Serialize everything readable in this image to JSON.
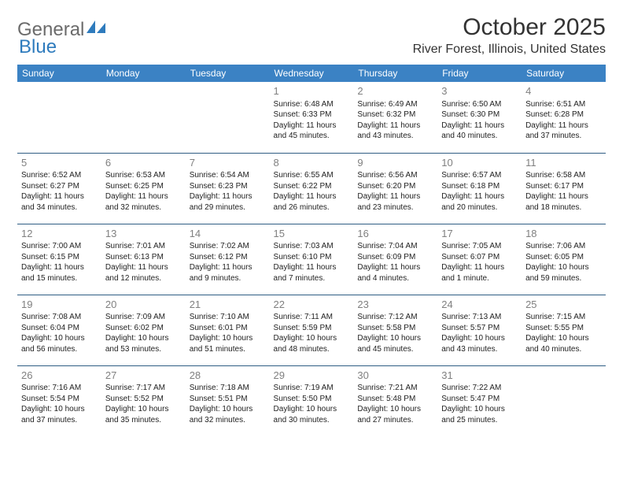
{
  "colors": {
    "header_bg": "#3b82c4",
    "header_text": "#ffffff",
    "row_divider": "#2f5d84",
    "daynum": "#808080",
    "body_text": "#222222",
    "logo_gray": "#6b6b6b",
    "logo_blue": "#2e7bbd",
    "page_bg": "#ffffff"
  },
  "logo": {
    "part1": "General",
    "part2": "Blue"
  },
  "title": "October 2025",
  "location": "River Forest, Illinois, United States",
  "weekdays": [
    "Sunday",
    "Monday",
    "Tuesday",
    "Wednesday",
    "Thursday",
    "Friday",
    "Saturday"
  ],
  "weeks": [
    [
      null,
      null,
      null,
      {
        "n": "1",
        "sr": "Sunrise: 6:48 AM",
        "ss": "Sunset: 6:33 PM",
        "d1": "Daylight: 11 hours",
        "d2": "and 45 minutes."
      },
      {
        "n": "2",
        "sr": "Sunrise: 6:49 AM",
        "ss": "Sunset: 6:32 PM",
        "d1": "Daylight: 11 hours",
        "d2": "and 43 minutes."
      },
      {
        "n": "3",
        "sr": "Sunrise: 6:50 AM",
        "ss": "Sunset: 6:30 PM",
        "d1": "Daylight: 11 hours",
        "d2": "and 40 minutes."
      },
      {
        "n": "4",
        "sr": "Sunrise: 6:51 AM",
        "ss": "Sunset: 6:28 PM",
        "d1": "Daylight: 11 hours",
        "d2": "and 37 minutes."
      }
    ],
    [
      {
        "n": "5",
        "sr": "Sunrise: 6:52 AM",
        "ss": "Sunset: 6:27 PM",
        "d1": "Daylight: 11 hours",
        "d2": "and 34 minutes."
      },
      {
        "n": "6",
        "sr": "Sunrise: 6:53 AM",
        "ss": "Sunset: 6:25 PM",
        "d1": "Daylight: 11 hours",
        "d2": "and 32 minutes."
      },
      {
        "n": "7",
        "sr": "Sunrise: 6:54 AM",
        "ss": "Sunset: 6:23 PM",
        "d1": "Daylight: 11 hours",
        "d2": "and 29 minutes."
      },
      {
        "n": "8",
        "sr": "Sunrise: 6:55 AM",
        "ss": "Sunset: 6:22 PM",
        "d1": "Daylight: 11 hours",
        "d2": "and 26 minutes."
      },
      {
        "n": "9",
        "sr": "Sunrise: 6:56 AM",
        "ss": "Sunset: 6:20 PM",
        "d1": "Daylight: 11 hours",
        "d2": "and 23 minutes."
      },
      {
        "n": "10",
        "sr": "Sunrise: 6:57 AM",
        "ss": "Sunset: 6:18 PM",
        "d1": "Daylight: 11 hours",
        "d2": "and 20 minutes."
      },
      {
        "n": "11",
        "sr": "Sunrise: 6:58 AM",
        "ss": "Sunset: 6:17 PM",
        "d1": "Daylight: 11 hours",
        "d2": "and 18 minutes."
      }
    ],
    [
      {
        "n": "12",
        "sr": "Sunrise: 7:00 AM",
        "ss": "Sunset: 6:15 PM",
        "d1": "Daylight: 11 hours",
        "d2": "and 15 minutes."
      },
      {
        "n": "13",
        "sr": "Sunrise: 7:01 AM",
        "ss": "Sunset: 6:13 PM",
        "d1": "Daylight: 11 hours",
        "d2": "and 12 minutes."
      },
      {
        "n": "14",
        "sr": "Sunrise: 7:02 AM",
        "ss": "Sunset: 6:12 PM",
        "d1": "Daylight: 11 hours",
        "d2": "and 9 minutes."
      },
      {
        "n": "15",
        "sr": "Sunrise: 7:03 AM",
        "ss": "Sunset: 6:10 PM",
        "d1": "Daylight: 11 hours",
        "d2": "and 7 minutes."
      },
      {
        "n": "16",
        "sr": "Sunrise: 7:04 AM",
        "ss": "Sunset: 6:09 PM",
        "d1": "Daylight: 11 hours",
        "d2": "and 4 minutes."
      },
      {
        "n": "17",
        "sr": "Sunrise: 7:05 AM",
        "ss": "Sunset: 6:07 PM",
        "d1": "Daylight: 11 hours",
        "d2": "and 1 minute."
      },
      {
        "n": "18",
        "sr": "Sunrise: 7:06 AM",
        "ss": "Sunset: 6:05 PM",
        "d1": "Daylight: 10 hours",
        "d2": "and 59 minutes."
      }
    ],
    [
      {
        "n": "19",
        "sr": "Sunrise: 7:08 AM",
        "ss": "Sunset: 6:04 PM",
        "d1": "Daylight: 10 hours",
        "d2": "and 56 minutes."
      },
      {
        "n": "20",
        "sr": "Sunrise: 7:09 AM",
        "ss": "Sunset: 6:02 PM",
        "d1": "Daylight: 10 hours",
        "d2": "and 53 minutes."
      },
      {
        "n": "21",
        "sr": "Sunrise: 7:10 AM",
        "ss": "Sunset: 6:01 PM",
        "d1": "Daylight: 10 hours",
        "d2": "and 51 minutes."
      },
      {
        "n": "22",
        "sr": "Sunrise: 7:11 AM",
        "ss": "Sunset: 5:59 PM",
        "d1": "Daylight: 10 hours",
        "d2": "and 48 minutes."
      },
      {
        "n": "23",
        "sr": "Sunrise: 7:12 AM",
        "ss": "Sunset: 5:58 PM",
        "d1": "Daylight: 10 hours",
        "d2": "and 45 minutes."
      },
      {
        "n": "24",
        "sr": "Sunrise: 7:13 AM",
        "ss": "Sunset: 5:57 PM",
        "d1": "Daylight: 10 hours",
        "d2": "and 43 minutes."
      },
      {
        "n": "25",
        "sr": "Sunrise: 7:15 AM",
        "ss": "Sunset: 5:55 PM",
        "d1": "Daylight: 10 hours",
        "d2": "and 40 minutes."
      }
    ],
    [
      {
        "n": "26",
        "sr": "Sunrise: 7:16 AM",
        "ss": "Sunset: 5:54 PM",
        "d1": "Daylight: 10 hours",
        "d2": "and 37 minutes."
      },
      {
        "n": "27",
        "sr": "Sunrise: 7:17 AM",
        "ss": "Sunset: 5:52 PM",
        "d1": "Daylight: 10 hours",
        "d2": "and 35 minutes."
      },
      {
        "n": "28",
        "sr": "Sunrise: 7:18 AM",
        "ss": "Sunset: 5:51 PM",
        "d1": "Daylight: 10 hours",
        "d2": "and 32 minutes."
      },
      {
        "n": "29",
        "sr": "Sunrise: 7:19 AM",
        "ss": "Sunset: 5:50 PM",
        "d1": "Daylight: 10 hours",
        "d2": "and 30 minutes."
      },
      {
        "n": "30",
        "sr": "Sunrise: 7:21 AM",
        "ss": "Sunset: 5:48 PM",
        "d1": "Daylight: 10 hours",
        "d2": "and 27 minutes."
      },
      {
        "n": "31",
        "sr": "Sunrise: 7:22 AM",
        "ss": "Sunset: 5:47 PM",
        "d1": "Daylight: 10 hours",
        "d2": "and 25 minutes."
      },
      null
    ]
  ]
}
